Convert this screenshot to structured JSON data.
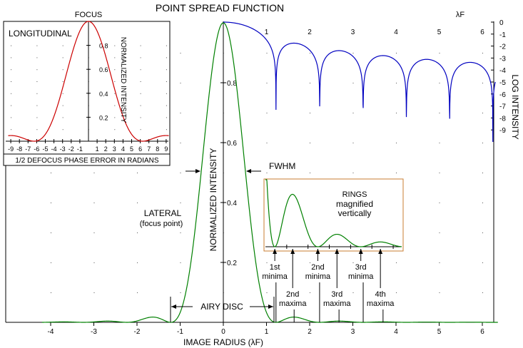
{
  "title": "POINT SPREAD FUNCTION",
  "chart_data": [
    {
      "type": "line",
      "name": "main",
      "xlabel": "IMAGE RADIUS (λF)",
      "ylabel": "NORMALIZED INTENSITY",
      "xlim": [
        -4.2,
        6.4
      ],
      "ylim": [
        0,
        1
      ],
      "x_ticks": [
        "-4",
        "-3",
        "-2",
        "-1",
        "0",
        "1",
        "2",
        "3",
        "4",
        "5",
        "6"
      ],
      "y_ticks": [
        "0.2",
        "0.4",
        "0.6",
        "0.8"
      ],
      "grid": "dotted",
      "series": [
        {
          "label": "LATERAL",
          "sublabel": "(focus point)",
          "color": "#008000",
          "function": "Airy pattern [2·J1(πr)/(πr)]², peak 1 at r = 0"
        }
      ]
    },
    {
      "type": "line",
      "name": "log-intensity",
      "ylabel": "LOG INTENSITY",
      "x_label_top": "λF",
      "x_ticks": [
        "1",
        "2",
        "3",
        "4",
        "5",
        "6"
      ],
      "y_ticks": [
        "0",
        "-1",
        "-2",
        "-3",
        "-4",
        "-5",
        "-6",
        "-7",
        "-8",
        "-9"
      ],
      "ylim": [
        -9,
        0
      ],
      "series": [
        {
          "color": "#0000c0",
          "function": "log10 of Airy intensity, r = 0 to 6.3"
        }
      ]
    },
    {
      "type": "line",
      "name": "longitudinal-inset",
      "title": "LONGITUDINAL",
      "top_label": "FOCUS",
      "xlabel": "1/2 DEFOCUS PHASE ERROR IN RADIANS",
      "ylabel": "NORMALIZED INTENSITY",
      "xlim": [
        -9.3,
        9.3
      ],
      "ylim": [
        0,
        1
      ],
      "x_ticks": [
        "-9",
        "-8",
        "-7",
        "-6",
        "-5",
        "-4",
        "-3",
        "-2",
        "-1",
        "1",
        "2",
        "3",
        "4",
        "5",
        "6",
        "7",
        "8",
        "9"
      ],
      "y_ticks": [
        "0.2",
        "0.4",
        "0.6",
        "0.8"
      ],
      "series": [
        {
          "color": "#cc0000",
          "function": "[sin(u/2)/(u/2)]²"
        }
      ]
    },
    {
      "type": "line",
      "name": "rings-inset",
      "title_lines": [
        "RINGS",
        "magnified",
        "vertically"
      ],
      "series": [
        {
          "color": "#008000",
          "function": "Airy intensity × 40, r = 1.0 to 4.2"
        }
      ]
    }
  ],
  "annotations": {
    "fwhm": "FWHM",
    "airy_disc": "AIRY DISC",
    "minima": [
      {
        "line1": "1st",
        "line2": "minima",
        "x": 1.22
      },
      {
        "line1": "2nd",
        "line2": "minima",
        "x": 2.23
      },
      {
        "line1": "3rd",
        "line2": "minima",
        "x": 3.24
      }
    ],
    "maxima": [
      {
        "line1": "2nd",
        "line2": "maxima",
        "x": 1.64
      },
      {
        "line1": "3rd",
        "line2": "maxima",
        "x": 2.68
      },
      {
        "line1": "4th",
        "line2": "maxima",
        "x": 3.7
      }
    ]
  }
}
